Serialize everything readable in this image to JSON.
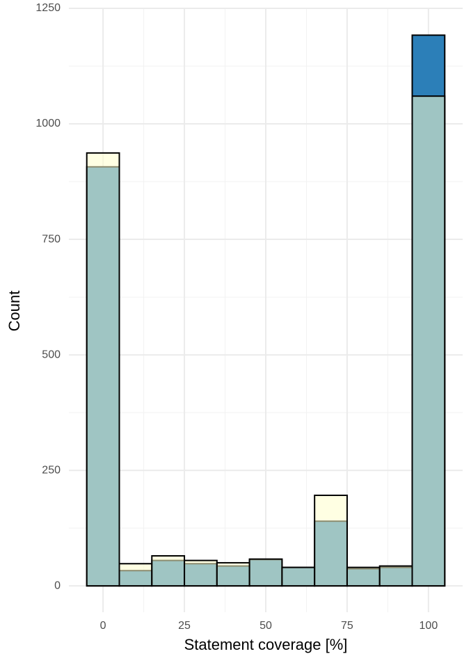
{
  "chart_data": {
    "type": "histogram",
    "xlabel": "Statement coverage [%]",
    "ylabel": "Count",
    "bins": [
      -5,
      5,
      15,
      25,
      35,
      45,
      55,
      65,
      75,
      85,
      95,
      105
    ],
    "series": [
      {
        "color": "#2c7fb8",
        "values": [
          907,
          33,
          55,
          48,
          43,
          57,
          40,
          140,
          37,
          40,
          1192
        ]
      },
      {
        "color": "#ffffcc",
        "opacity": 0.55,
        "values": [
          937,
          48,
          65,
          55,
          50,
          58,
          40,
          196,
          40,
          43,
          1060
        ]
      }
    ],
    "xlim": [
      -10.5,
      110.5
    ],
    "ylim": [
      -57,
      1250
    ],
    "xticks": [
      0,
      25,
      50,
      75,
      100
    ],
    "yticks": [
      0,
      250,
      500,
      750,
      1000,
      1250
    ],
    "xminor": [
      12.5,
      37.5,
      62.5,
      87.5
    ],
    "yminor": [
      125,
      375,
      625,
      875,
      1125
    ],
    "grid": true
  }
}
